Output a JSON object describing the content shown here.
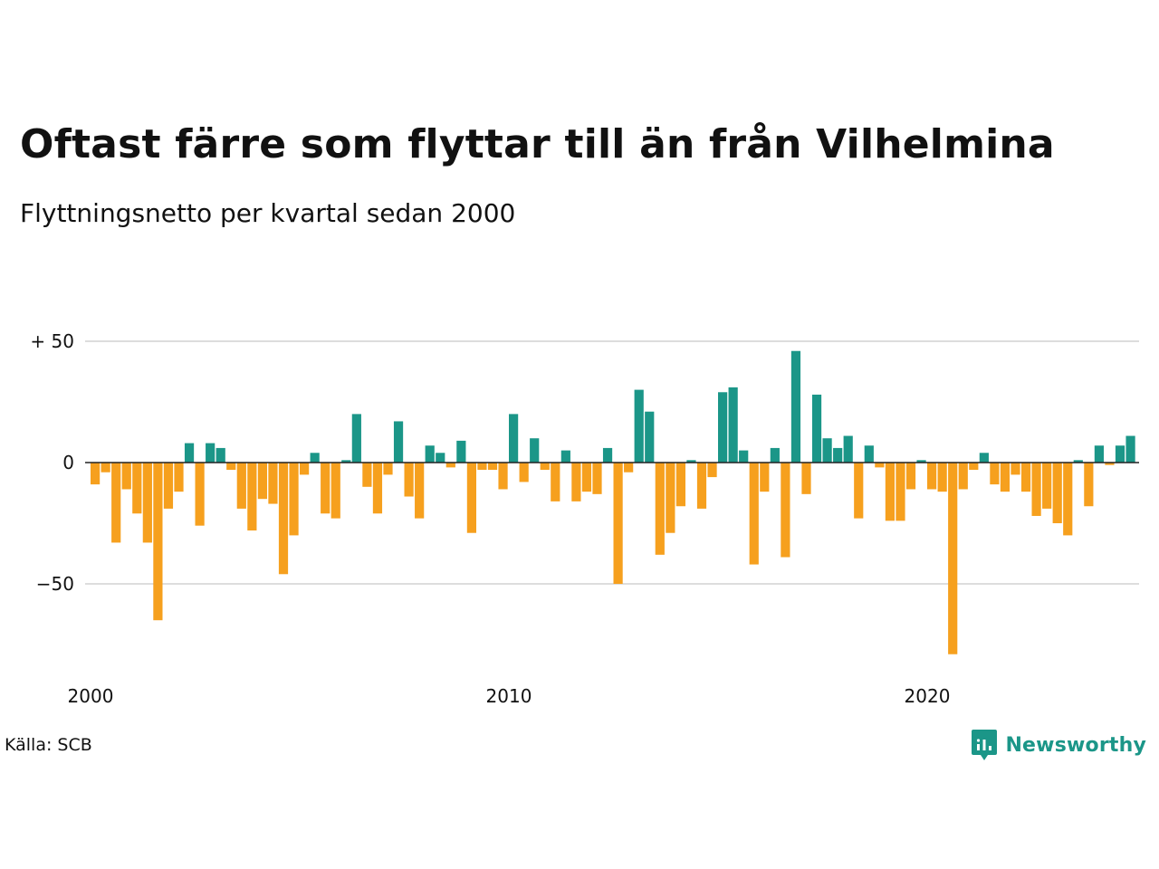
{
  "title": "Oftast färre som flyttar till än från Vilhelmina",
  "subtitle": "Flyttningsnetto per kvartal sedan 2000",
  "source": "Källa: SCB",
  "brand": {
    "name": "Newsworthy",
    "icon": "bar-chart-speech-bubble-icon",
    "color": "#1b9688"
  },
  "colors": {
    "positive": "#1b9688",
    "negative": "#f6a01e",
    "grid": "#dddddd",
    "zero_line": "#222222"
  },
  "chart_data": {
    "type": "bar",
    "title": "Oftast färre som flyttar till än från Vilhelmina",
    "subtitle": "Flyttningsnetto per kvartal sedan 2000",
    "xlabel": "",
    "ylabel": "",
    "x_ticks": [
      "2000",
      "2010",
      "2020"
    ],
    "y_ticks": [
      {
        "value": 50,
        "label": "+ 50"
      },
      {
        "value": 0,
        "label": "0"
      },
      {
        "value": -50,
        "label": "−50"
      }
    ],
    "ylim": [
      -80,
      50
    ],
    "grid": true,
    "legend": "none",
    "start_period": "2000 Q1",
    "values": [
      -9,
      -4,
      -33,
      -11,
      -21,
      -33,
      -65,
      -19,
      -12,
      8,
      -26,
      8,
      6,
      -3,
      -19,
      -28,
      -15,
      -17,
      -46,
      -30,
      -5,
      4,
      -21,
      -23,
      1,
      20,
      -10,
      -21,
      -5,
      17,
      -14,
      -23,
      7,
      4,
      -2,
      9,
      -29,
      -3,
      -3,
      -11,
      20,
      -8,
      10,
      -3,
      -16,
      5,
      -16,
      -12,
      -13,
      6,
      -50,
      -4,
      30,
      21,
      -38,
      -29,
      -18,
      1,
      -19,
      -6,
      29,
      31,
      5,
      -42,
      -12,
      6,
      -39,
      46,
      -13,
      28,
      10,
      6,
      11,
      -23,
      7,
      -2,
      -24,
      -24,
      -11,
      1,
      -11,
      -12,
      -79,
      -11,
      -3,
      4,
      -9,
      -12,
      -5,
      -12,
      -22,
      -19,
      -25,
      -30,
      1,
      -18,
      7,
      -1,
      7,
      11
    ]
  }
}
